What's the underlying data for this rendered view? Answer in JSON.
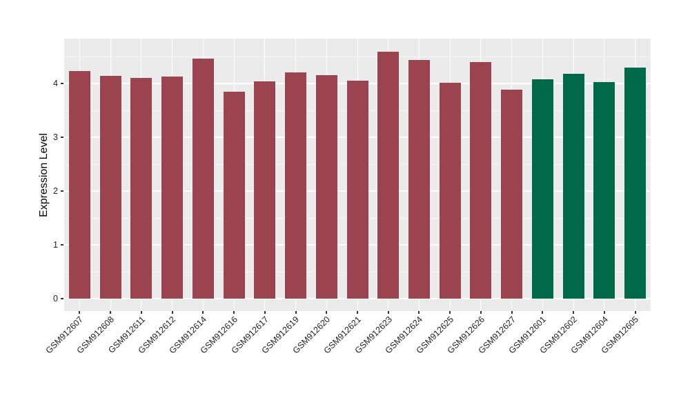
{
  "figure": {
    "background": "#FFFFFF",
    "panel_background": "#EBEBEB",
    "grid_major_color": "#FFFFFF",
    "grid_minor_color": "#F5F5F5",
    "tick_color": "#333333",
    "axis_text_color": "#1F1F1F"
  },
  "chart_data": {
    "type": "bar",
    "title": "",
    "xlabel": "",
    "ylabel": "Expression Level",
    "ylim": [
      0,
      4.83
    ],
    "yticks": [
      0,
      1,
      2,
      3,
      4
    ],
    "yticks_minor": [
      0.5,
      1.5,
      2.5,
      3.5,
      4.5
    ],
    "grid": true,
    "legend_position": "none",
    "x_label_angle_deg": 45,
    "categories": [
      "GSM912607",
      "GSM912608",
      "GSM912611",
      "GSM912612",
      "GSM912614",
      "GSM912616",
      "GSM912617",
      "GSM912619",
      "GSM912620",
      "GSM912621",
      "GSM912623",
      "GSM912624",
      "GSM912625",
      "GSM912626",
      "GSM912627",
      "GSM912601",
      "GSM912602",
      "GSM912604",
      "GSM912605"
    ],
    "values": [
      4.23,
      4.14,
      4.1,
      4.13,
      4.46,
      3.85,
      4.04,
      4.21,
      4.16,
      4.05,
      4.59,
      4.43,
      4.01,
      4.4,
      3.88,
      4.08,
      4.18,
      4.03,
      4.29
    ],
    "bar_group_colors": {
      "maroon": "#9B4450",
      "green": "#00694A"
    },
    "bar_groups": [
      "maroon",
      "maroon",
      "maroon",
      "maroon",
      "maroon",
      "maroon",
      "maroon",
      "maroon",
      "maroon",
      "maroon",
      "maroon",
      "maroon",
      "maroon",
      "maroon",
      "maroon",
      "green",
      "green",
      "green",
      "green"
    ]
  }
}
